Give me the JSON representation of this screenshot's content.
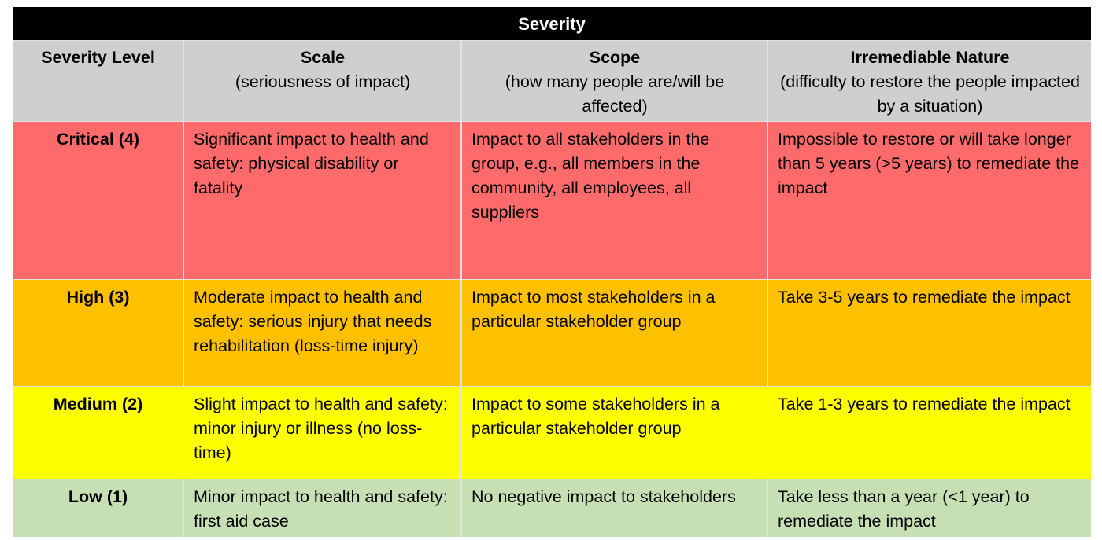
{
  "table": {
    "title": "Severity",
    "headers": [
      {
        "title": "Severity Level",
        "subtitle": ""
      },
      {
        "title": "Scale",
        "subtitle": "(seriousness of impact)"
      },
      {
        "title": "Scope",
        "subtitle": "(how many people are/will be affected)"
      },
      {
        "title": "Irremediable Nature",
        "subtitle": "(difficulty to restore the people impacted by a situation)"
      }
    ],
    "rows": [
      {
        "level": "Critical (4)",
        "color": "#ff6b6b",
        "scale": "Significant impact to health and safety: physical disability or fatality",
        "scope": "Impact to all stakeholders in the group, e.g., all members in the community, all employees, all suppliers",
        "irremediable": "Impossible to restore or will take longer than 5 years (>5 years) to remediate the impact"
      },
      {
        "level": "High (3)",
        "color": "#ffc000",
        "scale": "Moderate impact to health and safety: serious injury that needs rehabilitation (loss-time injury)",
        "scope": "Impact to most stakeholders in a particular stakeholder group",
        "irremediable": "Take 3-5 years to remediate the impact"
      },
      {
        "level": "Medium (2)",
        "color": "#ffff00",
        "scale": "Slight impact to health and safety: minor injury or illness (no loss-time)",
        "scope": "Impact to some stakeholders in a particular stakeholder group",
        "irremediable": "Take 1-3 years to remediate the impact"
      },
      {
        "level": "Low (1)",
        "color": "#c6e0b4",
        "scale": "Minor impact to health and safety: first aid case",
        "scope": "No negative impact to stakeholders",
        "irremediable": "Take less than a year (<1 year) to remediate the impact"
      }
    ],
    "colors": {
      "title_bg": "#000000",
      "header_bg": "#d0cece",
      "divider": "#e3e3e3"
    }
  }
}
